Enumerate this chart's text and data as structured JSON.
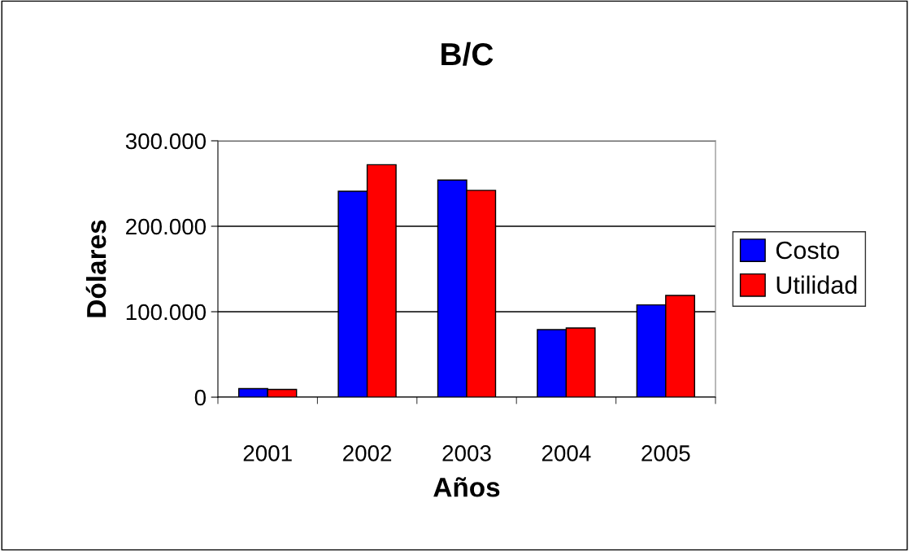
{
  "chart_data": {
    "type": "bar",
    "title": "B/C",
    "xlabel": "Años",
    "ylabel": "Dólares",
    "categories": [
      "2001",
      "2002",
      "2003",
      "2004",
      "2005"
    ],
    "series": [
      {
        "name": "Costo",
        "color": "#0000ff",
        "values": [
          10000,
          241000,
          254000,
          79000,
          108000
        ]
      },
      {
        "name": "Utilidad",
        "color": "#ff0000",
        "values": [
          9000,
          272000,
          242000,
          81000,
          119000
        ]
      }
    ],
    "ylim": [
      0,
      300000
    ],
    "yticks": [
      {
        "value": 0,
        "label": "0"
      },
      {
        "value": 100000,
        "label": "100.000"
      },
      {
        "value": 200000,
        "label": "200.000"
      },
      {
        "value": 300000,
        "label": "300.000"
      }
    ],
    "grid": "y",
    "legend": "right"
  }
}
